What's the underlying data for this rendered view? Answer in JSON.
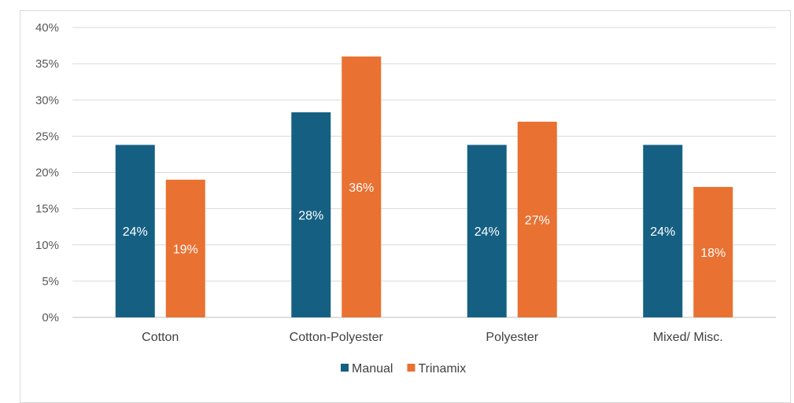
{
  "chart_data": {
    "type": "bar",
    "categories": [
      "Cotton",
      "Cotton-Polyester",
      "Polyester",
      "Mixed/ Misc."
    ],
    "series": [
      {
        "name": "Manual",
        "color": "#156082",
        "values": [
          23.8,
          28.3,
          23.8,
          23.8
        ],
        "labels": [
          "24%",
          "28%",
          "24%",
          "24%"
        ]
      },
      {
        "name": "Trinamix",
        "color": "#E97132",
        "values": [
          19,
          36,
          27,
          18
        ],
        "labels": [
          "19%",
          "36%",
          "27%",
          "18%"
        ]
      }
    ],
    "yticks": [
      "0%",
      "5%",
      "10%",
      "15%",
      "20%",
      "25%",
      "30%",
      "35%",
      "40%"
    ],
    "ylim": [
      0,
      40
    ],
    "grid": true,
    "legend": "bottom",
    "title": "",
    "xlabel": "",
    "ylabel": ""
  }
}
